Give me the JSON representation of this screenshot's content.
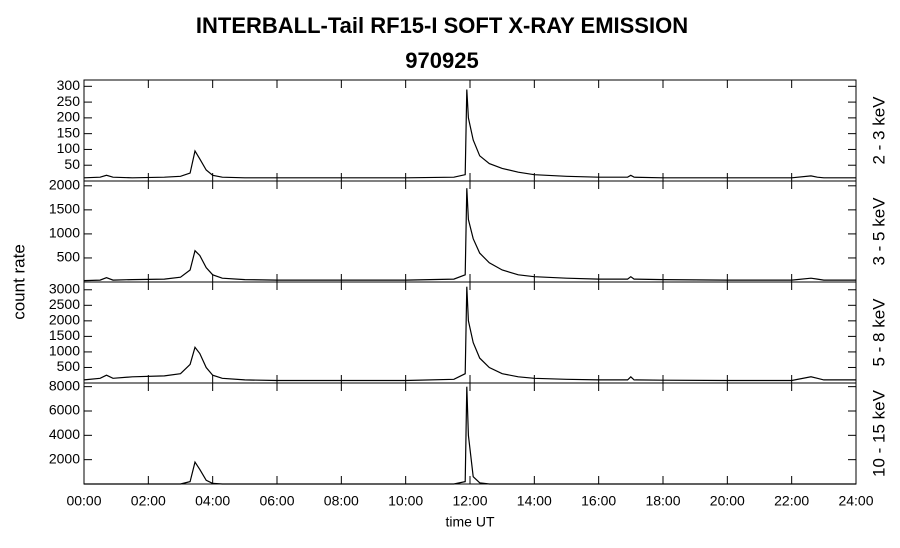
{
  "title": "INTERBALL-Tail RF15-I SOFT X-RAY EMISSION",
  "subtitle": "970925",
  "xlabel": "time UT",
  "ylabel": "count rate",
  "chart_data": [
    {
      "type": "line",
      "ylabel": "2 - 3 keV",
      "xlim": [
        0,
        24
      ],
      "ylim": [
        0,
        320
      ],
      "yticks": [
        50,
        100,
        150,
        200,
        250,
        300
      ],
      "x": [
        0,
        0.5,
        0.7,
        0.9,
        1.5,
        2.5,
        3,
        3.3,
        3.45,
        3.6,
        3.8,
        4,
        4.3,
        5,
        6,
        8,
        10,
        11.5,
        11.85,
        11.9,
        11.95,
        12.1,
        12.3,
        12.6,
        13,
        13.5,
        14,
        15,
        16,
        16.9,
        17,
        17.1,
        18,
        20,
        22,
        22.6,
        22.8,
        23,
        24
      ],
      "series": [
        {
          "color": "#000000",
          "values": [
            10,
            12,
            18,
            12,
            10,
            12,
            15,
            25,
            95,
            70,
            35,
            18,
            12,
            10,
            10,
            10,
            10,
            12,
            20,
            290,
            200,
            130,
            80,
            55,
            40,
            28,
            20,
            15,
            12,
            12,
            18,
            12,
            10,
            10,
            10,
            16,
            12,
            10,
            10
          ]
        }
      ]
    },
    {
      "type": "line",
      "ylabel": "3 - 5 keV",
      "xlim": [
        0,
        24
      ],
      "ylim": [
        0,
        2100
      ],
      "yticks": [
        500,
        1000,
        1500,
        2000
      ],
      "x": [
        0,
        0.5,
        0.7,
        0.9,
        1.5,
        2.5,
        3,
        3.3,
        3.45,
        3.6,
        3.8,
        4,
        4.3,
        5,
        6,
        8,
        10,
        11.5,
        11.85,
        11.9,
        11.95,
        12.1,
        12.3,
        12.6,
        13,
        13.5,
        14,
        15,
        16,
        16.9,
        17,
        17.1,
        18,
        20,
        22,
        22.6,
        22.8,
        23,
        24
      ],
      "series": [
        {
          "color": "#000000",
          "values": [
            30,
            40,
            90,
            40,
            50,
            60,
            100,
            250,
            650,
            550,
            300,
            150,
            80,
            50,
            40,
            40,
            40,
            60,
            150,
            1950,
            1300,
            900,
            600,
            400,
            250,
            150,
            110,
            80,
            60,
            60,
            110,
            60,
            50,
            40,
            40,
            80,
            60,
            40,
            40
          ]
        }
      ]
    },
    {
      "type": "line",
      "ylabel": "5 - 8 keV",
      "xlim": [
        0,
        24
      ],
      "ylim": [
        0,
        3250
      ],
      "yticks": [
        500,
        1000,
        1500,
        2000,
        2500,
        3000
      ],
      "x": [
        0,
        0.5,
        0.7,
        0.9,
        1.5,
        2.5,
        3,
        3.3,
        3.45,
        3.6,
        3.8,
        4,
        4.3,
        5,
        6,
        8,
        10,
        11.5,
        11.85,
        11.9,
        11.95,
        12.1,
        12.3,
        12.6,
        13,
        13.5,
        14,
        15,
        16,
        16.9,
        17,
        17.1,
        18,
        20,
        22,
        22.6,
        22.8,
        23,
        24
      ],
      "series": [
        {
          "color": "#000000",
          "values": [
            100,
            150,
            250,
            150,
            200,
            230,
            300,
            600,
            1150,
            950,
            500,
            250,
            150,
            100,
            80,
            80,
            80,
            120,
            300,
            3100,
            2000,
            1300,
            800,
            500,
            300,
            200,
            150,
            120,
            100,
            100,
            200,
            100,
            90,
            80,
            80,
            200,
            150,
            100,
            100
          ]
        }
      ]
    },
    {
      "type": "line",
      "ylabel": "10 - 15 keV",
      "xlim": [
        0,
        24
      ],
      "ylim": [
        0,
        8300
      ],
      "yticks": [
        2000,
        4000,
        6000,
        8000
      ],
      "xticks": [
        {
          "value": 0,
          "label": "00:00"
        },
        {
          "value": 2,
          "label": "02:00"
        },
        {
          "value": 4,
          "label": "04:00"
        },
        {
          "value": 6,
          "label": "06:00"
        },
        {
          "value": 8,
          "label": "08:00"
        },
        {
          "value": 10,
          "label": "10:00"
        },
        {
          "value": 12,
          "label": "12:00"
        },
        {
          "value": 14,
          "label": "14:00"
        },
        {
          "value": 16,
          "label": "16:00"
        },
        {
          "value": 18,
          "label": "18:00"
        },
        {
          "value": 20,
          "label": "20:00"
        },
        {
          "value": 22,
          "label": "22:00"
        },
        {
          "value": 24,
          "label": "24:00"
        }
      ],
      "x": [
        0,
        0.5,
        0.7,
        0.9,
        1.5,
        2.5,
        3,
        3.3,
        3.45,
        3.6,
        3.8,
        4,
        4.3,
        5,
        6,
        8,
        10,
        11.5,
        11.85,
        11.9,
        11.95,
        12.1,
        12.3,
        12.6,
        13,
        13.5,
        14,
        15,
        16,
        16.9,
        17,
        17.1,
        18,
        20,
        22,
        22.6,
        22.8,
        23,
        24
      ],
      "series": [
        {
          "color": "#000000",
          "values": [
            0,
            0,
            0,
            0,
            0,
            0,
            0,
            200,
            1800,
            1200,
            300,
            50,
            0,
            0,
            0,
            0,
            0,
            0,
            200,
            8000,
            4000,
            600,
            100,
            0,
            0,
            0,
            0,
            0,
            0,
            0,
            0,
            0,
            0,
            0,
            0,
            0,
            0,
            0,
            0
          ]
        }
      ]
    }
  ]
}
